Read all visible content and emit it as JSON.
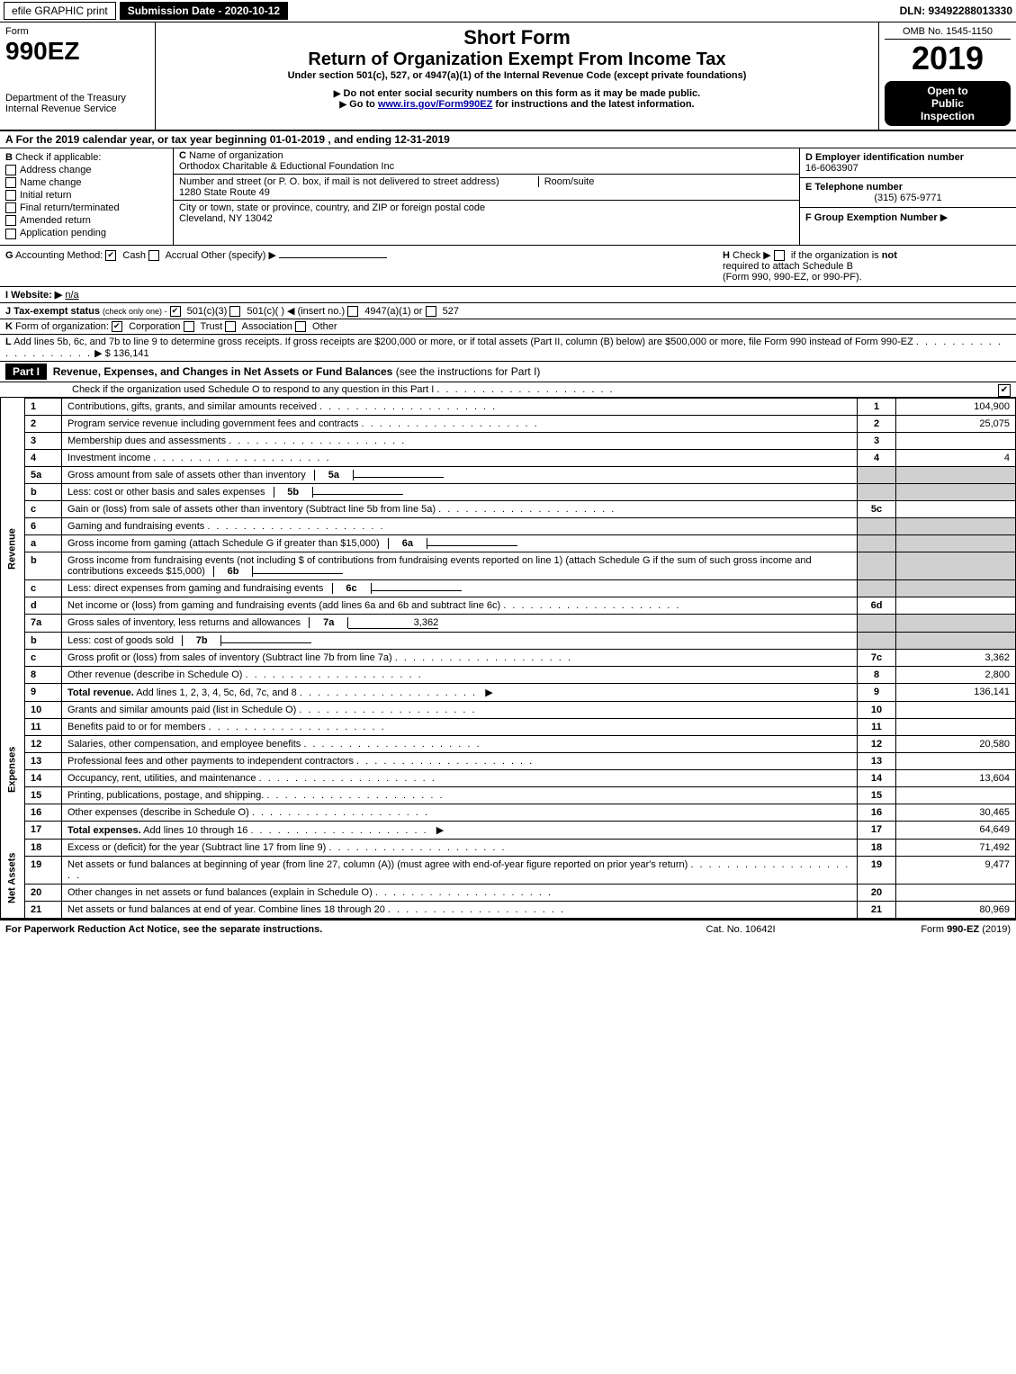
{
  "top_bar": {
    "efile_label": "efile GRAPHIC print",
    "submission_label": "Submission Date - 2020-10-12",
    "dln_label": "DLN: 93492288013330"
  },
  "header": {
    "form_label": "Form",
    "form_number": "990EZ",
    "dept_line1": "Department of the Treasury",
    "dept_line2": "Internal Revenue Service",
    "short_form": "Short Form",
    "return_title": "Return of Organization Exempt From Income Tax",
    "under_section": "Under section 501(c), 527, or 4947(a)(1) of the Internal Revenue Code (except private foundations)",
    "do_not_enter": "Do not enter social security numbers on this form as it may be made public.",
    "go_to_prefix": "Go to ",
    "go_to_link": "www.irs.gov/Form990EZ",
    "go_to_suffix": " for instructions and the latest information.",
    "omb": "OMB No. 1545-1150",
    "tax_year": "2019",
    "open_to": "Open to",
    "public": "Public",
    "inspection": "Inspection"
  },
  "section_a": "For the 2019 calendar year, or tax year beginning 01-01-2019 , and ending 12-31-2019",
  "section_a_prefix": "A",
  "id_block": {
    "b_label": "B",
    "b_text": "Check if applicable:",
    "checks": {
      "address_change": "Address change",
      "name_change": "Name change",
      "initial_return": "Initial return",
      "final_return": "Final return/terminated",
      "amended_return": "Amended return",
      "application_pending": "Application pending"
    },
    "c_label": "C",
    "c_text": "Name of organization",
    "org_name": "Orthodox Charitable & Eductional Foundation Inc",
    "addr_label": "Number and street (or P. O. box, if mail is not delivered to street address)",
    "room_label": "Room/suite",
    "addr_value": "1280 State Route 49",
    "city_label": "City or town, state or province, country, and ZIP or foreign postal code",
    "city_value": "Cleveland, NY  13042",
    "d_label": "D Employer identification number",
    "ein": "16-6063907",
    "e_label": "E Telephone number",
    "phone": "(315) 675-9771",
    "f_label": "F Group Exemption Number",
    "f_arrow": "▶"
  },
  "row_g": {
    "g_label": "G",
    "g_text": "Accounting Method:",
    "cash": "Cash",
    "accrual": "Accrual",
    "other": "Other (specify) ▶",
    "h_label": "H",
    "h_text_1": "Check ▶",
    "h_text_2": "if the organization is",
    "h_not": "not",
    "h_text_3": "required to attach Schedule B",
    "h_text_4": "(Form 990, 990-EZ, or 990-PF).",
    "i_label": "I Website: ▶",
    "website": "n/a",
    "j_label": "J Tax-exempt status",
    "j_text": "(check only one) -",
    "j_501c3": "501(c)(3)",
    "j_501c": "501(c)( )",
    "j_insert": "◀ (insert no.)",
    "j_4947": "4947(a)(1) or",
    "j_527": "527",
    "k_label": "K",
    "k_text": "Form of organization:",
    "k_corp": "Corporation",
    "k_trust": "Trust",
    "k_assoc": "Association",
    "k_other": "Other",
    "l_label": "L",
    "l_text": "Add lines 5b, 6c, and 7b to line 9 to determine gross receipts. If gross receipts are $200,000 or more, or if total assets (Part II, column (B) below) are $500,000 or more, file Form 990 instead of Form 990-EZ",
    "l_amount": "$ 136,141"
  },
  "part1": {
    "label": "Part I",
    "title": "Revenue, Expenses, and Changes in Net Assets or Fund Balances",
    "title_paren": "(see the instructions for Part I)",
    "check_line": "Check if the organization used Schedule O to respond to any question in this Part I",
    "check_checked": true
  },
  "side_labels": {
    "revenue": "Revenue",
    "expenses": "Expenses",
    "net_assets": "Net Assets"
  },
  "lines": [
    {
      "section": "revenue",
      "num": "1",
      "desc": "Contributions, gifts, grants, and similar amounts received",
      "box": "1",
      "amount": "104,900"
    },
    {
      "section": "revenue",
      "num": "2",
      "desc": "Program service revenue including government fees and contracts",
      "box": "2",
      "amount": "25,075"
    },
    {
      "section": "revenue",
      "num": "3",
      "desc": "Membership dues and assessments",
      "box": "3",
      "amount": ""
    },
    {
      "section": "revenue",
      "num": "4",
      "desc": "Investment income",
      "box": "4",
      "amount": "4"
    },
    {
      "section": "revenue",
      "num": "5a",
      "desc": "Gross amount from sale of assets other than inventory",
      "inner": "5a",
      "inner_val": "",
      "box": "",
      "amount": "",
      "shade": true
    },
    {
      "section": "revenue",
      "num": "b",
      "desc": "Less: cost or other basis and sales expenses",
      "inner": "5b",
      "inner_val": "",
      "box": "",
      "amount": "",
      "shade": true
    },
    {
      "section": "revenue",
      "num": "c",
      "desc": "Gain or (loss) from sale of assets other than inventory (Subtract line 5b from line 5a)",
      "box": "5c",
      "amount": ""
    },
    {
      "section": "revenue",
      "num": "6",
      "desc": "Gaming and fundraising events",
      "box": "",
      "amount": "",
      "shade": true,
      "no_box": true
    },
    {
      "section": "revenue",
      "num": "a",
      "desc": "Gross income from gaming (attach Schedule G if greater than $15,000)",
      "inner": "6a",
      "inner_val": "",
      "box": "",
      "amount": "",
      "shade": true
    },
    {
      "section": "revenue",
      "num": "b",
      "desc": "Gross income from fundraising events (not including $                    of contributions from fundraising events reported on line 1) (attach Schedule G if the sum of such gross income and contributions exceeds $15,000)",
      "inner": "6b",
      "inner_val": "",
      "box": "",
      "amount": "",
      "shade": true
    },
    {
      "section": "revenue",
      "num": "c",
      "desc": "Less: direct expenses from gaming and fundraising events",
      "inner": "6c",
      "inner_val": "",
      "box": "",
      "amount": "",
      "shade": true
    },
    {
      "section": "revenue",
      "num": "d",
      "desc": "Net income or (loss) from gaming and fundraising events (add lines 6a and 6b and subtract line 6c)",
      "box": "6d",
      "amount": ""
    },
    {
      "section": "revenue",
      "num": "7a",
      "desc": "Gross sales of inventory, less returns and allowances",
      "inner": "7a",
      "inner_val": "3,362",
      "box": "",
      "amount": "",
      "shade": true
    },
    {
      "section": "revenue",
      "num": "b",
      "desc": "Less: cost of goods sold",
      "inner": "7b",
      "inner_val": "",
      "box": "",
      "amount": "",
      "shade": true
    },
    {
      "section": "revenue",
      "num": "c",
      "desc": "Gross profit or (loss) from sales of inventory (Subtract line 7b from line 7a)",
      "box": "7c",
      "amount": "3,362"
    },
    {
      "section": "revenue",
      "num": "8",
      "desc": "Other revenue (describe in Schedule O)",
      "box": "8",
      "amount": "2,800"
    },
    {
      "section": "revenue",
      "num": "9",
      "desc": "Total revenue. Add lines 1, 2, 3, 4, 5c, 6d, 7c, and 8",
      "box": "9",
      "amount": "136,141",
      "bold": true,
      "arrow": true
    },
    {
      "section": "expenses",
      "num": "10",
      "desc": "Grants and similar amounts paid (list in Schedule O)",
      "box": "10",
      "amount": ""
    },
    {
      "section": "expenses",
      "num": "11",
      "desc": "Benefits paid to or for members",
      "box": "11",
      "amount": ""
    },
    {
      "section": "expenses",
      "num": "12",
      "desc": "Salaries, other compensation, and employee benefits",
      "box": "12",
      "amount": "20,580"
    },
    {
      "section": "expenses",
      "num": "13",
      "desc": "Professional fees and other payments to independent contractors",
      "box": "13",
      "amount": ""
    },
    {
      "section": "expenses",
      "num": "14",
      "desc": "Occupancy, rent, utilities, and maintenance",
      "box": "14",
      "amount": "13,604"
    },
    {
      "section": "expenses",
      "num": "15",
      "desc": "Printing, publications, postage, and shipping.",
      "box": "15",
      "amount": ""
    },
    {
      "section": "expenses",
      "num": "16",
      "desc": "Other expenses (describe in Schedule O)",
      "box": "16",
      "amount": "30,465"
    },
    {
      "section": "expenses",
      "num": "17",
      "desc": "Total expenses. Add lines 10 through 16",
      "box": "17",
      "amount": "64,649",
      "bold": true,
      "arrow": true
    },
    {
      "section": "net_assets",
      "num": "18",
      "desc": "Excess or (deficit) for the year (Subtract line 17 from line 9)",
      "box": "18",
      "amount": "71,492"
    },
    {
      "section": "net_assets",
      "num": "19",
      "desc": "Net assets or fund balances at beginning of year (from line 27, column (A)) (must agree with end-of-year figure reported on prior year's return)",
      "box": "19",
      "amount": "9,477"
    },
    {
      "section": "net_assets",
      "num": "20",
      "desc": "Other changes in net assets or fund balances (explain in Schedule O)",
      "box": "20",
      "amount": ""
    },
    {
      "section": "net_assets",
      "num": "21",
      "desc": "Net assets or fund balances at end of year. Combine lines 18 through 20",
      "box": "21",
      "amount": "80,969",
      "arrow": false
    }
  ],
  "footer": {
    "left": "For Paperwork Reduction Act Notice, see the separate instructions.",
    "center": "Cat. No. 10642I",
    "right_prefix": "Form ",
    "right_form": "990-EZ",
    "right_suffix": " (2019)"
  },
  "colors": {
    "black": "#000000",
    "white": "#ffffff",
    "shade": "#d0d0d0",
    "link": "#0000aa"
  }
}
